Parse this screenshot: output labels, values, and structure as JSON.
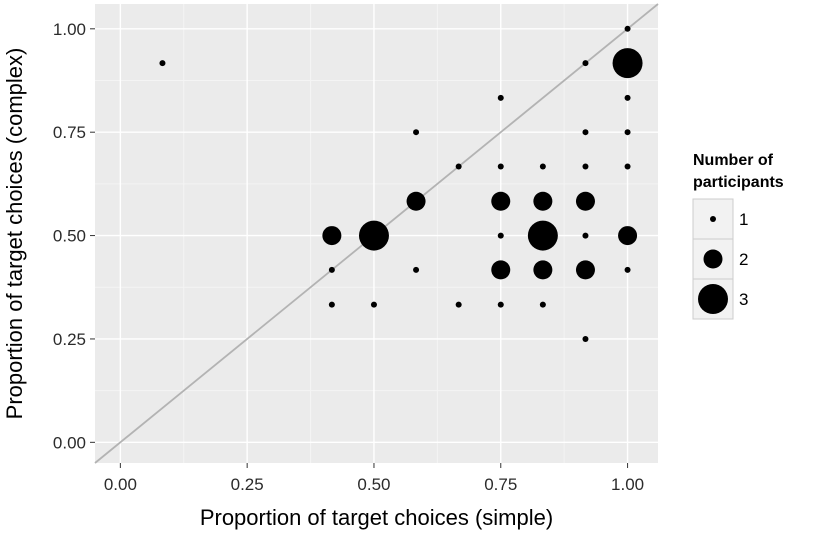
{
  "chart_data": {
    "type": "scatter",
    "xlabel": "Proportion of target choices (simple)",
    "ylabel": "Proportion of target choices (complex)",
    "xlim": [
      -0.05,
      1.06
    ],
    "ylim": [
      -0.05,
      1.06
    ],
    "x_ticks": [
      0,
      0.25,
      0.5,
      0.75,
      1
    ],
    "x_tick_labels": [
      "0.00",
      "0.25",
      "0.50",
      "0.75",
      "1.00"
    ],
    "y_ticks": [
      0,
      0.25,
      0.5,
      0.75,
      1
    ],
    "y_tick_labels": [
      "0.00",
      "0.25",
      "0.50",
      "0.75",
      "1.00"
    ],
    "grid": true,
    "reference_line": "y = x",
    "colors": {
      "panel": "#ebebeb",
      "grid_major": "#ffffff",
      "grid_minor": "#f4f4f4",
      "reference_line": "#b3b3b3",
      "points": "#000000"
    },
    "legend": {
      "title_lines": [
        "Number of",
        "participants"
      ],
      "position": "right",
      "items": [
        {
          "label": "1",
          "n": 1
        },
        {
          "label": "2",
          "n": 2
        },
        {
          "label": "3",
          "n": 3
        }
      ]
    },
    "points": [
      {
        "x": 0.083,
        "y": 0.917,
        "n": 1
      },
      {
        "x": 1.0,
        "y": 1.0,
        "n": 1
      },
      {
        "x": 0.917,
        "y": 0.917,
        "n": 1
      },
      {
        "x": 1.0,
        "y": 0.917,
        "n": 3
      },
      {
        "x": 0.75,
        "y": 0.833,
        "n": 1
      },
      {
        "x": 1.0,
        "y": 0.833,
        "n": 1
      },
      {
        "x": 0.583,
        "y": 0.75,
        "n": 1
      },
      {
        "x": 0.917,
        "y": 0.75,
        "n": 1
      },
      {
        "x": 1.0,
        "y": 0.75,
        "n": 1
      },
      {
        "x": 0.667,
        "y": 0.667,
        "n": 1
      },
      {
        "x": 0.75,
        "y": 0.667,
        "n": 1
      },
      {
        "x": 0.833,
        "y": 0.667,
        "n": 1
      },
      {
        "x": 0.917,
        "y": 0.667,
        "n": 1
      },
      {
        "x": 1.0,
        "y": 0.667,
        "n": 1
      },
      {
        "x": 0.583,
        "y": 0.583,
        "n": 2
      },
      {
        "x": 0.75,
        "y": 0.583,
        "n": 2
      },
      {
        "x": 0.833,
        "y": 0.583,
        "n": 2
      },
      {
        "x": 0.917,
        "y": 0.583,
        "n": 2
      },
      {
        "x": 0.417,
        "y": 0.5,
        "n": 2
      },
      {
        "x": 0.5,
        "y": 0.5,
        "n": 3
      },
      {
        "x": 0.75,
        "y": 0.5,
        "n": 1
      },
      {
        "x": 0.833,
        "y": 0.5,
        "n": 3
      },
      {
        "x": 0.917,
        "y": 0.5,
        "n": 1
      },
      {
        "x": 1.0,
        "y": 0.5,
        "n": 2
      },
      {
        "x": 0.417,
        "y": 0.417,
        "n": 1
      },
      {
        "x": 0.583,
        "y": 0.417,
        "n": 1
      },
      {
        "x": 0.75,
        "y": 0.417,
        "n": 2
      },
      {
        "x": 0.833,
        "y": 0.417,
        "n": 2
      },
      {
        "x": 0.917,
        "y": 0.417,
        "n": 2
      },
      {
        "x": 1.0,
        "y": 0.417,
        "n": 1
      },
      {
        "x": 0.417,
        "y": 0.333,
        "n": 1
      },
      {
        "x": 0.5,
        "y": 0.333,
        "n": 1
      },
      {
        "x": 0.667,
        "y": 0.333,
        "n": 1
      },
      {
        "x": 0.75,
        "y": 0.333,
        "n": 1
      },
      {
        "x": 0.833,
        "y": 0.333,
        "n": 1
      },
      {
        "x": 0.917,
        "y": 0.25,
        "n": 1
      }
    ]
  }
}
